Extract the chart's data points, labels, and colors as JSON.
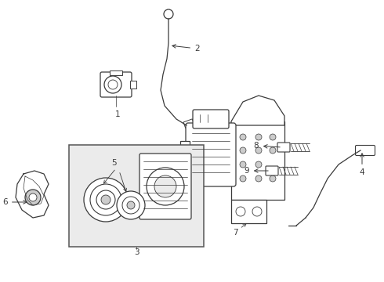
{
  "background_color": "#ffffff",
  "line_color": "#3a3a3a",
  "label_color": "#000000",
  "figsize": [
    4.9,
    3.6
  ],
  "dpi": 100
}
